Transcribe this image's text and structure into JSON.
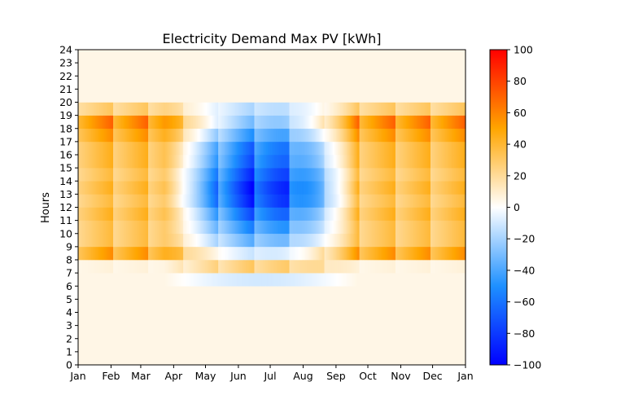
{
  "chart_data": {
    "type": "heatmap",
    "title": "Electricity Demand Max PV [kWh]",
    "xlabel": "",
    "ylabel": "Hours",
    "x_tick_labels": [
      "Jan",
      "Feb",
      "Mar",
      "Apr",
      "May",
      "Jun",
      "Jul",
      "Aug",
      "Sep",
      "Oct",
      "Nov",
      "Dec",
      "Jan"
    ],
    "y_ticks": [
      0,
      1,
      2,
      3,
      4,
      5,
      6,
      7,
      8,
      9,
      10,
      11,
      12,
      13,
      14,
      15,
      16,
      17,
      18,
      19,
      20,
      21,
      22,
      23,
      24
    ],
    "xlim": [
      1,
      366
    ],
    "ylim": [
      0,
      24
    ],
    "colorbar": {
      "range": [
        -100,
        100
      ],
      "ticks": [
        -100,
        -80,
        -60,
        -40,
        -20,
        0,
        20,
        40,
        60,
        80,
        100
      ],
      "colormap": [
        "#0000ff",
        "#1e90ff",
        "#ffffff",
        "#ffa500",
        "#ff0000"
      ]
    },
    "grid": false,
    "hour_profile_winter": [
      5,
      5,
      5,
      5,
      5,
      5,
      5,
      6,
      45,
      30,
      30,
      35,
      30,
      35,
      30,
      35,
      35,
      45,
      55,
      25,
      5,
      5,
      5,
      5
    ],
    "hour_profile_summer": [
      5,
      5,
      5,
      5,
      5,
      5,
      -10,
      25,
      -10,
      -30,
      -45,
      -60,
      -75,
      -80,
      -70,
      -60,
      -55,
      -40,
      -25,
      -15,
      5,
      5,
      5,
      5
    ]
  }
}
